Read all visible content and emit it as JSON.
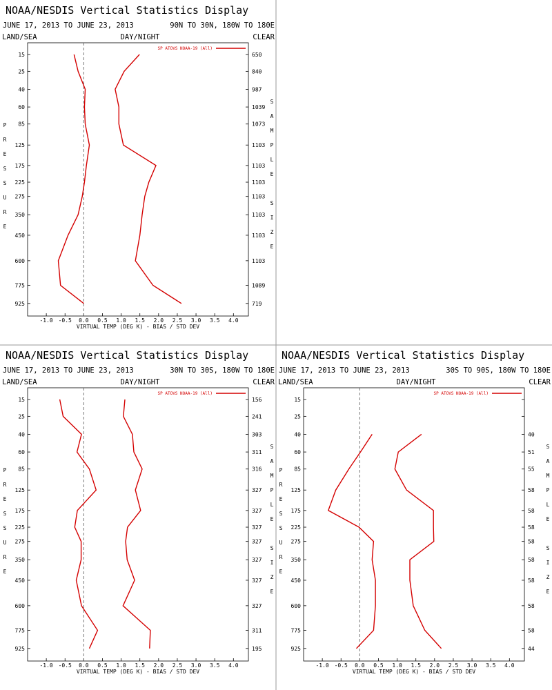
{
  "chart_data": [
    {
      "type": "line",
      "title": "NOAA/NESDIS Vertical Statistics Display",
      "subtitle": "JUNE 17, 2013 TO JUNE 23, 2013",
      "region": "90N TO 30N, 180W TO 180E",
      "left_header": "LAND/SEA",
      "center_header": "DAY/NIGHT",
      "right_header": "CLEAR",
      "legend": "SP ATOVS NOAA-19 (All)",
      "ylabel": "PRESSURE",
      "y2label": "SAMPLE SIZE",
      "xlabel": "VIRTUAL TEMP (DEG K) - BIAS / STD DEV",
      "y": [
        15,
        25,
        40,
        60,
        85,
        125,
        175,
        225,
        275,
        350,
        450,
        600,
        775,
        925
      ],
      "yticks": [
        15,
        25,
        40,
        60,
        85,
        125,
        175,
        225,
        275,
        350,
        450,
        600,
        775,
        925
      ],
      "ylim": [
        10,
        1040
      ],
      "yscale": "power",
      "y_exponent": 0.3,
      "xlim": [
        -1.5,
        4.4
      ],
      "xticks": [
        {
          "value": -1,
          "label": "-1.0"
        },
        {
          "value": -0.5,
          "label": "-0.5"
        },
        {
          "value": 0,
          "label": "0.0"
        },
        {
          "value": 0.5,
          "label": "0.5"
        },
        {
          "value": 1,
          "label": "1.0"
        },
        {
          "value": 1.5,
          "label": "1.5"
        },
        {
          "value": 2,
          "label": "2.0"
        },
        {
          "value": 2.5,
          "label": "2.5"
        },
        {
          "value": 3,
          "label": "3.0"
        },
        {
          "value": 3.5,
          "label": "3.5"
        },
        {
          "value": 4,
          "label": "4.0"
        }
      ],
      "reference_line_x": 0,
      "sample_size": [
        650,
        840,
        987,
        1039,
        1073,
        1103,
        1103,
        1103,
        1103,
        1103,
        1103,
        1103,
        1089,
        719
      ],
      "series": [
        {
          "color": "#d40000",
          "values": [
            -0.26,
            -0.15,
            0.04,
            0.02,
            0.04,
            0.15,
            0.07,
            0.02,
            -0.04,
            -0.15,
            -0.42,
            -0.68,
            -0.62,
            0.0
          ]
        },
        {
          "color": "#d40000",
          "values": [
            1.49,
            1.08,
            0.84,
            0.94,
            0.94,
            1.06,
            1.93,
            1.74,
            1.63,
            1.56,
            1.5,
            1.38,
            1.85,
            2.61
          ]
        }
      ]
    },
    {
      "type": "line",
      "title": "NOAA/NESDIS Vertical Statistics Display",
      "subtitle": "JUNE 17, 2013 TO JUNE 23, 2013",
      "region": "30N TO 30S, 180W TO 180E",
      "left_header": "LAND/SEA",
      "center_header": "DAY/NIGHT",
      "right_header": "CLEAR",
      "legend": "SP ATOVS NOAA-19 (All)",
      "ylabel": "PRESSURE",
      "y2label": "SAMPLE SIZE",
      "xlabel": "VIRTUAL TEMP (DEG K) - BIAS / STD DEV",
      "y": [
        15,
        25,
        40,
        60,
        85,
        125,
        175,
        225,
        275,
        350,
        450,
        600,
        775,
        925
      ],
      "yticks": [
        15,
        25,
        40,
        60,
        85,
        125,
        175,
        225,
        275,
        350,
        450,
        600,
        775,
        925
      ],
      "ylim": [
        10,
        1040
      ],
      "yscale": "power",
      "y_exponent": 0.3,
      "xlim": [
        -1.5,
        4.4
      ],
      "xticks": [
        {
          "value": -1,
          "label": "-1.0"
        },
        {
          "value": -0.5,
          "label": "-0.5"
        },
        {
          "value": 0,
          "label": "0.0"
        },
        {
          "value": 0.5,
          "label": "0.5"
        },
        {
          "value": 1,
          "label": "1.0"
        },
        {
          "value": 1.5,
          "label": "1.5"
        },
        {
          "value": 2,
          "label": "2.0"
        },
        {
          "value": 2.5,
          "label": "2.5"
        },
        {
          "value": 3,
          "label": "3.0"
        },
        {
          "value": 3.5,
          "label": "3.5"
        },
        {
          "value": 4,
          "label": "4.0"
        }
      ],
      "reference_line_x": 0,
      "sample_size": [
        156,
        241,
        303,
        311,
        316,
        327,
        327,
        327,
        327,
        327,
        327,
        327,
        311,
        195
      ],
      "series": [
        {
          "color": "#d40000",
          "values": [
            -0.64,
            -0.55,
            -0.06,
            -0.18,
            0.15,
            0.33,
            -0.17,
            -0.24,
            -0.07,
            -0.07,
            -0.2,
            -0.06,
            0.37,
            0.15
          ]
        },
        {
          "color": "#d40000",
          "values": [
            1.1,
            1.06,
            1.3,
            1.34,
            1.56,
            1.38,
            1.52,
            1.17,
            1.12,
            1.16,
            1.36,
            1.05,
            1.78,
            1.76
          ]
        }
      ]
    },
    {
      "type": "line",
      "title": "NOAA/NESDIS Vertical Statistics Display",
      "subtitle": "JUNE 17, 2013 TO JUNE 23, 2013",
      "region": "30S TO 90S, 180W TO 180E",
      "left_header": "LAND/SEA",
      "center_header": "DAY/NIGHT",
      "right_header": "CLEAR",
      "legend": "SP ATOVS NOAA-19 (All)",
      "ylabel": "PRESSURE",
      "y2label": "SAMPLE SIZE",
      "xlabel": "VIRTUAL TEMP (DEG K) - BIAS / STD DEV",
      "y": [
        15,
        25,
        40,
        60,
        85,
        125,
        175,
        225,
        275,
        350,
        450,
        600,
        775,
        925
      ],
      "yticks": [
        15,
        25,
        40,
        60,
        85,
        125,
        175,
        225,
        275,
        350,
        450,
        600,
        775,
        925
      ],
      "ylim": [
        10,
        1040
      ],
      "yscale": "power",
      "y_exponent": 0.3,
      "xlim": [
        -1.5,
        4.4
      ],
      "xticks": [
        {
          "value": -1,
          "label": "-1.0"
        },
        {
          "value": -0.5,
          "label": "-0.5"
        },
        {
          "value": 0,
          "label": "0.0"
        },
        {
          "value": 0.5,
          "label": "0.5"
        },
        {
          "value": 1,
          "label": "1.0"
        },
        {
          "value": 1.5,
          "label": "1.5"
        },
        {
          "value": 2,
          "label": "2.0"
        },
        {
          "value": 2.5,
          "label": "2.5"
        },
        {
          "value": 3,
          "label": "3.0"
        },
        {
          "value": 3.5,
          "label": "3.5"
        },
        {
          "value": 4,
          "label": "4.0"
        }
      ],
      "reference_line_x": 0,
      "sample_size": [
        null,
        null,
        40,
        51,
        55,
        58,
        58,
        58,
        58,
        58,
        58,
        58,
        58,
        44
      ],
      "series": [
        {
          "color": "#d40000",
          "values": [
            null,
            null,
            0.33,
            0.02,
            -0.29,
            -0.64,
            -0.84,
            -0.02,
            0.37,
            0.33,
            0.42,
            0.42,
            0.37,
            -0.09
          ]
        },
        {
          "color": "#d40000",
          "values": [
            null,
            null,
            1.65,
            1.03,
            0.94,
            1.25,
            1.97,
            1.97,
            1.98,
            1.34,
            1.34,
            1.43,
            1.74,
            2.18
          ]
        }
      ]
    }
  ]
}
